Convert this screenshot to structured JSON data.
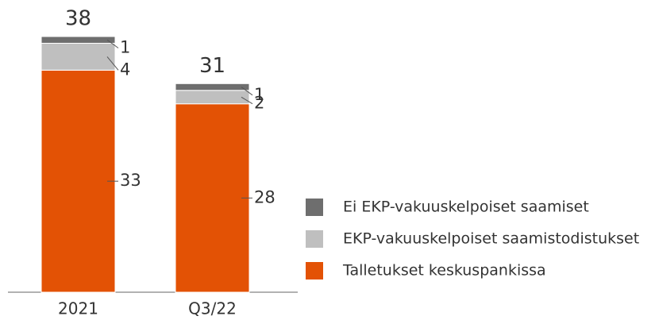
{
  "chart_data": {
    "type": "stacked_bar",
    "categories": [
      "2021",
      "Q3/22"
    ],
    "series": [
      {
        "name": "Talletukset keskuspankissa",
        "color": "#e35205",
        "values": [
          33,
          28
        ]
      },
      {
        "name": "EKP-vakuuskelpoiset saamistodistukset",
        "color": "#bfbfbf",
        "values": [
          4,
          2
        ]
      },
      {
        "name": "Ei EKP-vakuuskelpoiset saamiset",
        "color": "#6e6e6e",
        "values": [
          1,
          1
        ]
      }
    ],
    "totals": [
      38,
      31
    ]
  }
}
